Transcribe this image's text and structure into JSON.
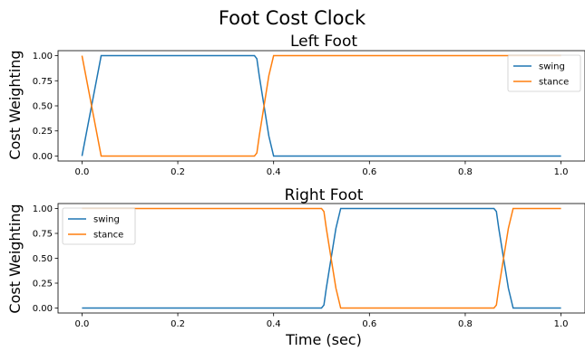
{
  "figure": {
    "suptitle": "Foot Cost Clock"
  },
  "colors": {
    "swing": "#1f77b4",
    "stance": "#ff7f0e"
  },
  "chart_data": [
    {
      "type": "line",
      "title": "Left Foot",
      "xlabel": "",
      "ylabel": "Cost Weighting",
      "xlim": [
        -0.05,
        1.05
      ],
      "ylim": [
        -0.05,
        1.05
      ],
      "xticks": [
        "0.0",
        "0.2",
        "0.4",
        "0.6",
        "0.8",
        "1.0"
      ],
      "yticks": [
        "0.00",
        "0.25",
        "0.50",
        "0.75",
        "1.00"
      ],
      "legend": "top-right",
      "series": [
        {
          "name": "swing",
          "x": [
            0.0,
            0.04,
            0.36,
            0.365,
            0.37,
            0.38,
            0.39,
            0.4,
            1.0
          ],
          "y": [
            0.0,
            1.0,
            1.0,
            0.97,
            0.8,
            0.5,
            0.2,
            0.0,
            0.0
          ]
        },
        {
          "name": "stance",
          "x": [
            0.0,
            0.04,
            0.36,
            0.365,
            0.37,
            0.38,
            0.39,
            0.4,
            1.0
          ],
          "y": [
            1.0,
            0.0,
            0.0,
            0.03,
            0.2,
            0.5,
            0.8,
            1.0,
            1.0
          ]
        }
      ]
    },
    {
      "type": "line",
      "title": "Right Foot",
      "xlabel": "Time (sec)",
      "ylabel": "Cost Weighting",
      "xlim": [
        -0.05,
        1.05
      ],
      "ylim": [
        -0.05,
        1.05
      ],
      "xticks": [
        "0.0",
        "0.2",
        "0.4",
        "0.6",
        "0.8",
        "1.0"
      ],
      "yticks": [
        "0.00",
        "0.25",
        "0.50",
        "0.75",
        "1.00"
      ],
      "legend": "top-left",
      "series": [
        {
          "name": "swing",
          "x": [
            0.0,
            0.5,
            0.505,
            0.51,
            0.52,
            0.53,
            0.54,
            0.86,
            0.865,
            0.87,
            0.88,
            0.89,
            0.9,
            1.0
          ],
          "y": [
            0.0,
            0.0,
            0.03,
            0.2,
            0.5,
            0.8,
            1.0,
            1.0,
            0.97,
            0.8,
            0.5,
            0.2,
            0.0,
            0.0
          ]
        },
        {
          "name": "stance",
          "x": [
            0.0,
            0.5,
            0.505,
            0.51,
            0.52,
            0.53,
            0.54,
            0.86,
            0.865,
            0.87,
            0.88,
            0.89,
            0.9,
            1.0
          ],
          "y": [
            1.0,
            1.0,
            0.97,
            0.8,
            0.5,
            0.2,
            0.0,
            0.0,
            0.03,
            0.2,
            0.5,
            0.8,
            1.0,
            1.0
          ]
        }
      ]
    }
  ]
}
